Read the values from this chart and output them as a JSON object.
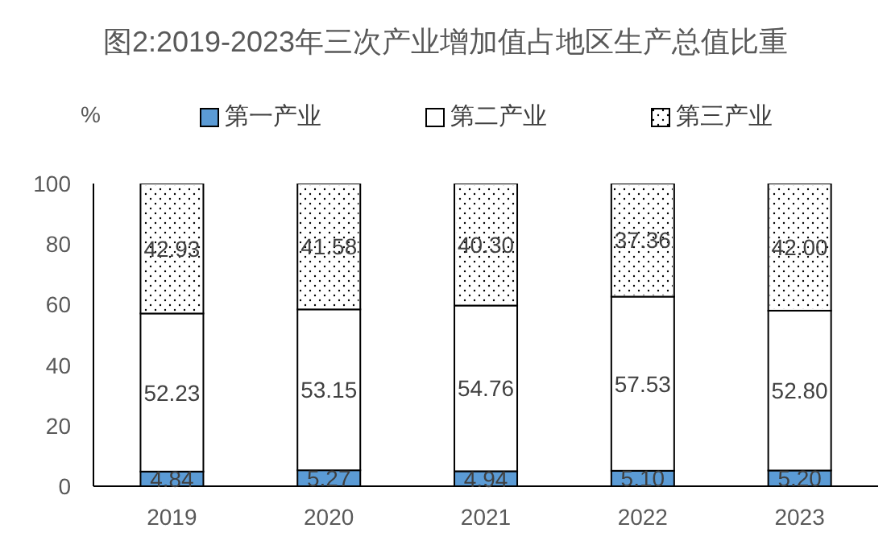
{
  "chart_data": {
    "type": "bar",
    "title": "图2:2019-2023年三次产业增加值占地区生产总值比重",
    "ylabel": "%",
    "categories": [
      "2019",
      "2020",
      "2021",
      "2022",
      "2023"
    ],
    "stacked": true,
    "legend": "top",
    "grid": false,
    "ylim": [
      0,
      100
    ],
    "yticks": [
      0,
      20,
      40,
      60,
      80,
      100
    ],
    "series": [
      {
        "name": "第一产业",
        "color": "#5b9bd5",
        "values": [
          4.84,
          5.27,
          4.94,
          5.1,
          5.2
        ],
        "value_labels": [
          "4.84",
          "5.27",
          "4.94",
          "5.10",
          "5.20"
        ]
      },
      {
        "name": "第二产业",
        "color": "#ffffff",
        "values": [
          52.23,
          53.15,
          54.76,
          57.53,
          52.8
        ],
        "value_labels": [
          "52.23",
          "53.15",
          "54.76",
          "57.53",
          "52.80"
        ]
      },
      {
        "name": "第三产业",
        "color": "#ffffff",
        "values": [
          42.93,
          41.58,
          40.3,
          37.36,
          42.0
        ],
        "value_labels": [
          "42.93",
          "41.58",
          "40.30",
          "37.36",
          "42.00"
        ]
      }
    ]
  }
}
